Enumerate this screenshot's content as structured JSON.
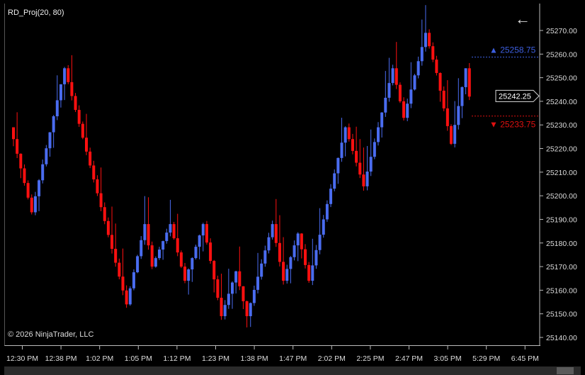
{
  "indicator_label": "RD_Proj(20, 80)",
  "copyright": "© 2026 NinjaTrader, LLC",
  "back_icon": "arrow-left-icon",
  "colors": {
    "up": "#4a6cf0",
    "down": "#ff1010",
    "upper_line": "#3d5fe0",
    "lower_line": "#e01010",
    "background": "#000000"
  },
  "chart_data": {
    "type": "candlestick",
    "y_range": [
      25136,
      25275
    ],
    "y_ticks": [
      "25140.00",
      "25150.00",
      "25160.00",
      "25170.00",
      "25180.00",
      "25190.00",
      "25200.00",
      "25210.00",
      "25220.00",
      "25230.00",
      "25240.00",
      "25250.00",
      "25260.00",
      "25270.00"
    ],
    "x_ticks": [
      "12:30 PM",
      "12:38 PM",
      "1:02 PM",
      "1:05 PM",
      "1:12 PM",
      "1:23 PM",
      "1:38 PM",
      "1:47 PM",
      "2:02 PM",
      "2:25 PM",
      "2:47 PM",
      "3:05 PM",
      "5:29 PM",
      "6:45 PM"
    ],
    "bar_count": 126,
    "pivots": [
      [
        0,
        25224
      ],
      [
        5,
        25193
      ],
      [
        14,
        25254
      ],
      [
        31,
        25154
      ],
      [
        36,
        25188
      ],
      [
        38,
        25170
      ],
      [
        43,
        25188
      ],
      [
        47,
        25164
      ],
      [
        52,
        25188
      ],
      [
        57,
        25149
      ],
      [
        61,
        25168
      ],
      [
        64,
        25149
      ],
      [
        71,
        25188
      ],
      [
        74,
        25164
      ],
      [
        78,
        25184
      ],
      [
        81,
        25164
      ],
      [
        91,
        25229
      ],
      [
        96,
        25204
      ],
      [
        104,
        25254
      ],
      [
        107,
        25233
      ],
      [
        113,
        25269
      ],
      [
        116,
        25252
      ],
      [
        120,
        25222
      ],
      [
        124,
        25254
      ],
      [
        125,
        25242
      ]
    ],
    "last_price": "25242.25",
    "upper_projection": {
      "value": 25258.75,
      "label": "25258.75"
    },
    "lower_projection": {
      "value": 25233.75,
      "label": "25233.75"
    }
  }
}
